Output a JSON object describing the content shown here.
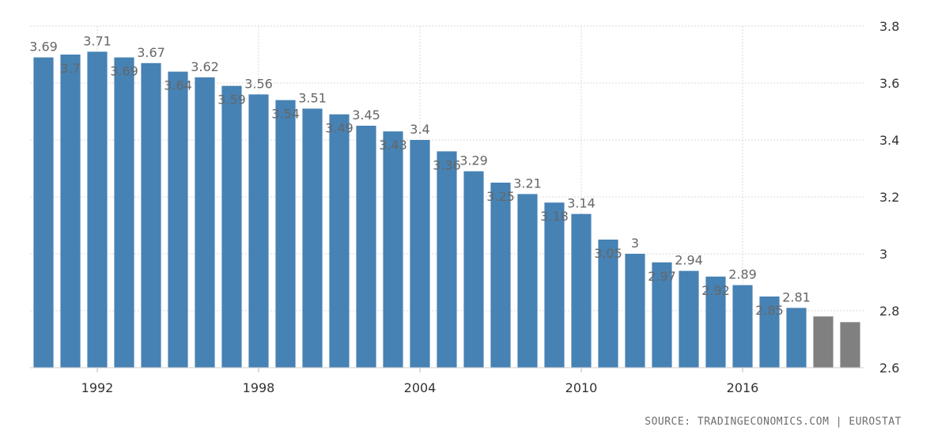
{
  "source": "SOURCE: TRADINGECONOMICS.COM | EUROSTAT",
  "chart_data": {
    "type": "bar",
    "title": "",
    "xlabel": "",
    "ylabel": "",
    "ylim": [
      2.6,
      3.8
    ],
    "yticks": [
      "2.6",
      "2.8",
      "3",
      "3.2",
      "3.4",
      "3.6",
      "3.8"
    ],
    "y_axis_position": "right",
    "grid": {
      "y": true,
      "x": true
    },
    "categories": [
      "1990",
      "1991",
      "1992",
      "1993",
      "1994",
      "1995",
      "1996",
      "1997",
      "1998",
      "1999",
      "2000",
      "2001",
      "2002",
      "2003",
      "2004",
      "2005",
      "2006",
      "2007",
      "2008",
      "2009",
      "2010",
      "2011",
      "2012",
      "2013",
      "2014",
      "2015",
      "2016",
      "2017",
      "2018",
      "2019",
      "2020"
    ],
    "xticks": [
      "1992",
      "1998",
      "2004",
      "2010",
      "2016"
    ],
    "values": [
      3.69,
      3.7,
      3.71,
      3.69,
      3.67,
      3.64,
      3.62,
      3.59,
      3.56,
      3.54,
      3.51,
      3.49,
      3.45,
      3.43,
      3.4,
      3.36,
      3.29,
      3.25,
      3.21,
      3.18,
      3.14,
      3.05,
      3.0,
      2.97,
      2.94,
      2.92,
      2.89,
      2.85,
      2.81,
      2.78,
      2.76
    ],
    "value_labels": [
      "3.69",
      "3.7",
      "3.71",
      "3.69",
      "3.67",
      "3.64",
      "3.62",
      "3.59",
      "3.56",
      "3.54",
      "3.51",
      "3.49",
      "3.45",
      "3.43",
      "3.4",
      "3.36",
      "3.29",
      "3.25",
      "3.21",
      "3.18",
      "3.14",
      "3.05",
      "3",
      "2.97",
      "2.94",
      "2.92",
      "2.89",
      "2.85",
      "2.81",
      "",
      ""
    ],
    "bar_kind": [
      "actual",
      "actual",
      "actual",
      "actual",
      "actual",
      "actual",
      "actual",
      "actual",
      "actual",
      "actual",
      "actual",
      "actual",
      "actual",
      "actual",
      "actual",
      "actual",
      "actual",
      "actual",
      "actual",
      "actual",
      "actual",
      "actual",
      "actual",
      "actual",
      "actual",
      "actual",
      "actual",
      "actual",
      "actual",
      "forecast",
      "forecast"
    ],
    "colors": {
      "actual": "#4682b4",
      "forecast": "#808080",
      "grid": "#d9d9d9",
      "tick_text": "#333333",
      "label_text": "#666666"
    }
  }
}
